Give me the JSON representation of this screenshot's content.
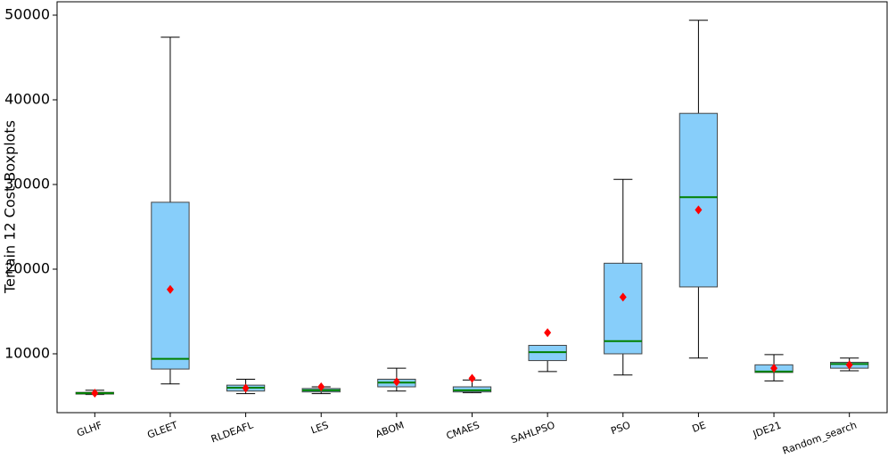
{
  "chart_data": {
    "type": "box",
    "y_label": "Terrain 12 Cost Boxplots",
    "categories": [
      "GLHF",
      "GLEET",
      "RLDEAFL",
      "LES",
      "ABOM",
      "CMAES",
      "SAHLPSO",
      "PSO",
      "DE",
      "JDE21",
      "Random_search"
    ],
    "boxes": [
      {
        "whislo": 5200,
        "q1": 5250,
        "med": 5350,
        "q3": 5450,
        "whishi": 5700,
        "mean": 5350
      },
      {
        "whislo": 6450,
        "q1": 8200,
        "med": 9400,
        "q3": 27900,
        "whishi": 47400,
        "mean": 17600
      },
      {
        "whislo": 5300,
        "q1": 5600,
        "med": 6000,
        "q3": 6300,
        "whishi": 7000,
        "mean": 5950
      },
      {
        "whislo": 5300,
        "q1": 5500,
        "med": 5700,
        "q3": 5900,
        "whishi": 6100,
        "mean": 6100
      },
      {
        "whislo": 5600,
        "q1": 6100,
        "med": 6600,
        "q3": 7000,
        "whishi": 8300,
        "mean": 6700
      },
      {
        "whislo": 5400,
        "q1": 5500,
        "med": 5700,
        "q3": 6100,
        "whishi": 6900,
        "mean": 7100
      },
      {
        "whislo": 7900,
        "q1": 9200,
        "med": 10200,
        "q3": 11000,
        "whishi": 11000,
        "mean": 12500
      },
      {
        "whislo": 7500,
        "q1": 10000,
        "med": 11500,
        "q3": 20700,
        "whishi": 30600,
        "mean": 16700
      },
      {
        "whislo": 9500,
        "q1": 17900,
        "med": 28500,
        "q3": 38400,
        "whishi": 49400,
        "mean": 27000
      },
      {
        "whislo": 6800,
        "q1": 7800,
        "med": 7900,
        "q3": 8700,
        "whishi": 9900,
        "mean": 8300
      },
      {
        "whislo": 8000,
        "q1": 8300,
        "med": 8800,
        "q3": 9000,
        "whishi": 9500,
        "mean": 8700
      }
    ],
    "box_color": "#87cefa",
    "median_color": "#008000",
    "mean_color": "#ff0000",
    "ylim": [
      3050,
      51580
    ],
    "yticks": [
      10000,
      20000,
      30000,
      40000,
      50000
    ]
  }
}
